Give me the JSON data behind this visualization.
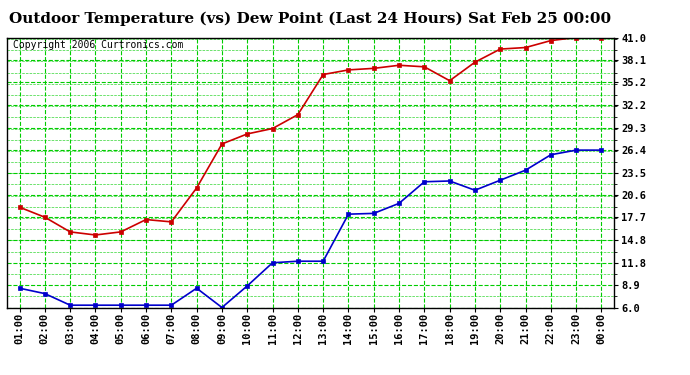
{
  "title": "Outdoor Temperature (vs) Dew Point (Last 24 Hours) Sat Feb 25 00:00",
  "copyright": "Copyright 2006 Curtronics.com",
  "x_labels": [
    "01:00",
    "02:00",
    "03:00",
    "04:00",
    "05:00",
    "06:00",
    "07:00",
    "08:00",
    "09:00",
    "10:00",
    "11:00",
    "12:00",
    "13:00",
    "14:00",
    "15:00",
    "16:00",
    "17:00",
    "18:00",
    "19:00",
    "20:00",
    "21:00",
    "22:00",
    "23:00",
    "00:00"
  ],
  "temp": [
    19.0,
    17.7,
    15.8,
    15.4,
    15.8,
    17.4,
    17.1,
    21.5,
    27.2,
    28.5,
    29.2,
    31.0,
    36.2,
    36.8,
    37.0,
    37.4,
    37.2,
    35.4,
    37.8,
    39.5,
    39.7,
    40.6,
    41.0,
    41.0
  ],
  "dewpoint": [
    8.5,
    7.8,
    6.3,
    6.3,
    6.3,
    6.3,
    6.3,
    8.5,
    6.0,
    8.8,
    11.8,
    12.0,
    12.0,
    18.1,
    18.2,
    19.5,
    22.3,
    22.4,
    21.2,
    22.5,
    23.8,
    25.8,
    26.4,
    26.4
  ],
  "temp_color": "#cc0000",
  "dew_color": "#0000cc",
  "bg_color": "#ffffff",
  "plot_bg": "#ffffff",
  "grid_color": "#00cc00",
  "yticks": [
    6.0,
    8.9,
    11.8,
    14.8,
    17.7,
    20.6,
    23.5,
    26.4,
    29.3,
    32.2,
    35.2,
    38.1,
    41.0
  ],
  "ymin": 6.0,
  "ymax": 41.0,
  "title_fontsize": 11,
  "axis_fontsize": 7.5,
  "copyright_fontsize": 7,
  "marker": "s",
  "markersize": 3,
  "linewidth": 1.2
}
